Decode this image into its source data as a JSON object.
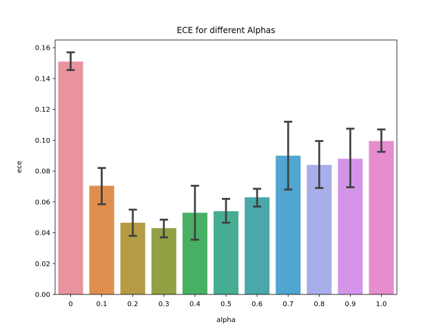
{
  "chart_data": {
    "type": "bar",
    "title": "ECE for different Alphas",
    "xlabel": "alpha",
    "ylabel": "ece",
    "ylim": [
      0,
      0.165
    ],
    "yticks": [
      "0.00",
      "0.02",
      "0.04",
      "0.06",
      "0.08",
      "0.10",
      "0.12",
      "0.14",
      "0.16"
    ],
    "ytick_values": [
      0,
      0.02,
      0.04,
      0.06,
      0.08,
      0.1,
      0.12,
      0.14,
      0.16
    ],
    "categories": [
      "0",
      "0.1",
      "0.2",
      "0.3",
      "0.4",
      "0.5",
      "0.6",
      "0.7",
      "0.8",
      "0.9",
      "1.0"
    ],
    "values": [
      0.151,
      0.0705,
      0.0465,
      0.043,
      0.053,
      0.054,
      0.063,
      0.09,
      0.084,
      0.088,
      0.0995
    ],
    "err_low": [
      0.1455,
      0.0585,
      0.038,
      0.037,
      0.0355,
      0.0465,
      0.057,
      0.068,
      0.069,
      0.0695,
      0.0925
    ],
    "err_high": [
      0.157,
      0.082,
      0.055,
      0.0485,
      0.0705,
      0.062,
      0.0685,
      0.112,
      0.0995,
      0.1075,
      0.107
    ],
    "colors": [
      "#e8939d",
      "#df8f4d",
      "#b59b45",
      "#93a043",
      "#47b064",
      "#47ad92",
      "#4aa8ab",
      "#50a6d0",
      "#a7aee9",
      "#d495e8",
      "#e68dcd"
    ],
    "grid": false,
    "legend": "none"
  }
}
